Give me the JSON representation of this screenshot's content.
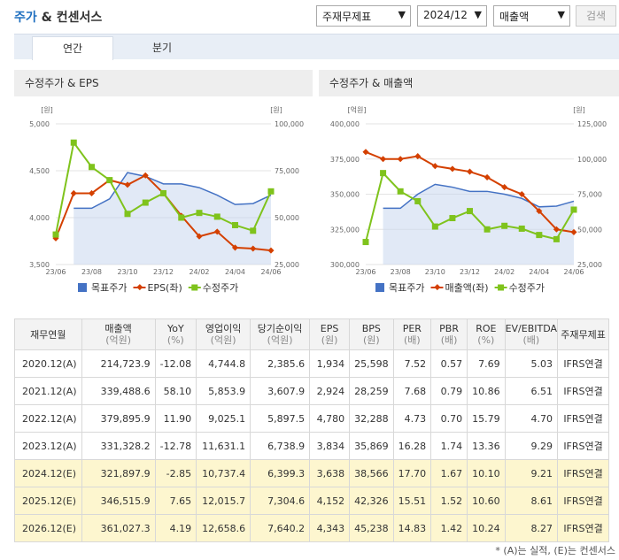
{
  "header": {
    "title_main": "주가",
    "title_rest": "& 컨센서스",
    "select_type": "주재무제표",
    "select_period": "2024/12",
    "select_metric": "매출액",
    "search_label": "검색"
  },
  "tabs": [
    "연간",
    "분기"
  ],
  "colors": {
    "target": "#4472c4",
    "eps": "#d44000",
    "price": "#7fc31c"
  },
  "chart_data": [
    {
      "type": "line",
      "title": "수정주가 & EPS",
      "x": [
        "23/06",
        "23/07",
        "23/08",
        "23/09",
        "23/10",
        "23/11",
        "23/12",
        "24/01",
        "24/02",
        "24/03",
        "24/04",
        "24/05",
        "24/06"
      ],
      "xtick_labels": [
        "23/06",
        "23/08",
        "23/10",
        "23/12",
        "24/02",
        "24/04",
        "24/06"
      ],
      "left_unit": "[원]",
      "right_unit": "[원]",
      "left_ylim": [
        3500,
        5000
      ],
      "left_ticks": [
        "5,000",
        "4,500",
        "4,000",
        "3,500"
      ],
      "right_ylim": [
        25000,
        100000
      ],
      "right_ticks": [
        "100,000",
        "75,000",
        "50,000",
        "25,000"
      ],
      "series": [
        {
          "name": "목표주가",
          "axis": "right",
          "style": "area",
          "values": [
            null,
            55000,
            55000,
            60000,
            74000,
            72000,
            68000,
            68000,
            66000,
            62000,
            57000,
            57500,
            62000
          ]
        },
        {
          "name": "EPS(좌)",
          "axis": "left",
          "style": "diamond",
          "values": [
            3780,
            4260,
            4260,
            4400,
            4350,
            4450,
            4260,
            4020,
            3800,
            3850,
            3680,
            3670,
            3650
          ]
        },
        {
          "name": "수정주가",
          "axis": "right",
          "style": "square",
          "values": [
            41000,
            90000,
            77000,
            70000,
            52000,
            58000,
            63000,
            50000,
            52500,
            50500,
            46000,
            43000,
            64000
          ]
        }
      ],
      "legend": [
        "목표주가",
        "EPS(좌)",
        "수정주가"
      ]
    },
    {
      "type": "line",
      "title": "수정주가 & 매출액",
      "x": [
        "23/06",
        "23/07",
        "23/08",
        "23/09",
        "23/10",
        "23/11",
        "23/12",
        "24/01",
        "24/02",
        "24/03",
        "24/04",
        "24/05",
        "24/06"
      ],
      "xtick_labels": [
        "23/06",
        "23/08",
        "23/10",
        "23/12",
        "24/02",
        "24/04",
        "24/06"
      ],
      "left_unit": "[억원]",
      "right_unit": "[원]",
      "left_ylim": [
        300000,
        400000
      ],
      "left_ticks": [
        "400,000",
        "375,000",
        "350,000",
        "325,000",
        "300,000"
      ],
      "right_ylim": [
        25000,
        125000
      ],
      "right_ticks": [
        "125,000",
        "100,000",
        "75,000",
        "50,000",
        "25,000"
      ],
      "series": [
        {
          "name": "목표주가",
          "axis": "right",
          "style": "area",
          "values": [
            null,
            65000,
            65000,
            75000,
            82000,
            80000,
            77000,
            77000,
            75000,
            72000,
            66000,
            66500,
            70000
          ]
        },
        {
          "name": "매출액(좌)",
          "axis": "left",
          "style": "diamond",
          "values": [
            380000,
            375000,
            375000,
            377000,
            370000,
            368000,
            366000,
            362000,
            355000,
            350000,
            338000,
            325000,
            323000
          ]
        },
        {
          "name": "수정주가",
          "axis": "right",
          "style": "square",
          "values": [
            41000,
            90000,
            77000,
            70000,
            52000,
            58000,
            63000,
            50000,
            52500,
            50500,
            46000,
            43000,
            64000
          ]
        }
      ],
      "legend": [
        "목표주가",
        "매출액(좌)",
        "수정주가"
      ]
    }
  ],
  "table": {
    "headers": [
      {
        "name": "재무연월",
        "unit": ""
      },
      {
        "name": "매출액",
        "unit": "(억원)"
      },
      {
        "name": "YoY",
        "unit": "(%)"
      },
      {
        "name": "영업이익",
        "unit": "(억원)"
      },
      {
        "name": "당기순이익",
        "unit": "(억원)"
      },
      {
        "name": "EPS",
        "unit": "(원)"
      },
      {
        "name": "BPS",
        "unit": "(원)"
      },
      {
        "name": "PER",
        "unit": "(배)"
      },
      {
        "name": "PBR",
        "unit": "(배)"
      },
      {
        "name": "ROE",
        "unit": "(%)"
      },
      {
        "name": "EV/EBITDA",
        "unit": "(배)"
      },
      {
        "name": "주재무제표",
        "unit": ""
      }
    ],
    "rows": [
      {
        "estimate": false,
        "cells": [
          "2020.12(A)",
          "214,723.9",
          "-12.08",
          "4,744.8",
          "2,385.6",
          "1,934",
          "25,598",
          "7.52",
          "0.57",
          "7.69",
          "5.03",
          "IFRS연결"
        ]
      },
      {
        "estimate": false,
        "cells": [
          "2021.12(A)",
          "339,488.6",
          "58.10",
          "5,853.9",
          "3,607.9",
          "2,924",
          "28,259",
          "7.68",
          "0.79",
          "10.86",
          "6.51",
          "IFRS연결"
        ]
      },
      {
        "estimate": false,
        "cells": [
          "2022.12(A)",
          "379,895.9",
          "11.90",
          "9,025.1",
          "5,897.5",
          "4,780",
          "32,288",
          "4.73",
          "0.70",
          "15.79",
          "4.70",
          "IFRS연결"
        ]
      },
      {
        "estimate": false,
        "cells": [
          "2023.12(A)",
          "331,328.2",
          "-12.78",
          "11,631.1",
          "6,738.9",
          "3,834",
          "35,869",
          "16.28",
          "1.74",
          "13.36",
          "9.29",
          "IFRS연결"
        ]
      },
      {
        "estimate": true,
        "cells": [
          "2024.12(E)",
          "321,897.9",
          "-2.85",
          "10,737.4",
          "6,399.3",
          "3,638",
          "38,566",
          "17.70",
          "1.67",
          "10.10",
          "9.21",
          "IFRS연결"
        ]
      },
      {
        "estimate": true,
        "cells": [
          "2025.12(E)",
          "346,515.9",
          "7.65",
          "12,015.7",
          "7,304.6",
          "4,152",
          "42,326",
          "15.51",
          "1.52",
          "10.60",
          "8.61",
          "IFRS연결"
        ]
      },
      {
        "estimate": true,
        "cells": [
          "2026.12(E)",
          "361,027.3",
          "4.19",
          "12,658.6",
          "7,640.2",
          "4,343",
          "45,238",
          "14.83",
          "1.42",
          "10.24",
          "8.27",
          "IFRS연결"
        ]
      }
    ]
  },
  "footnote": "* (A)는 실적, (E)는 컨센서스"
}
